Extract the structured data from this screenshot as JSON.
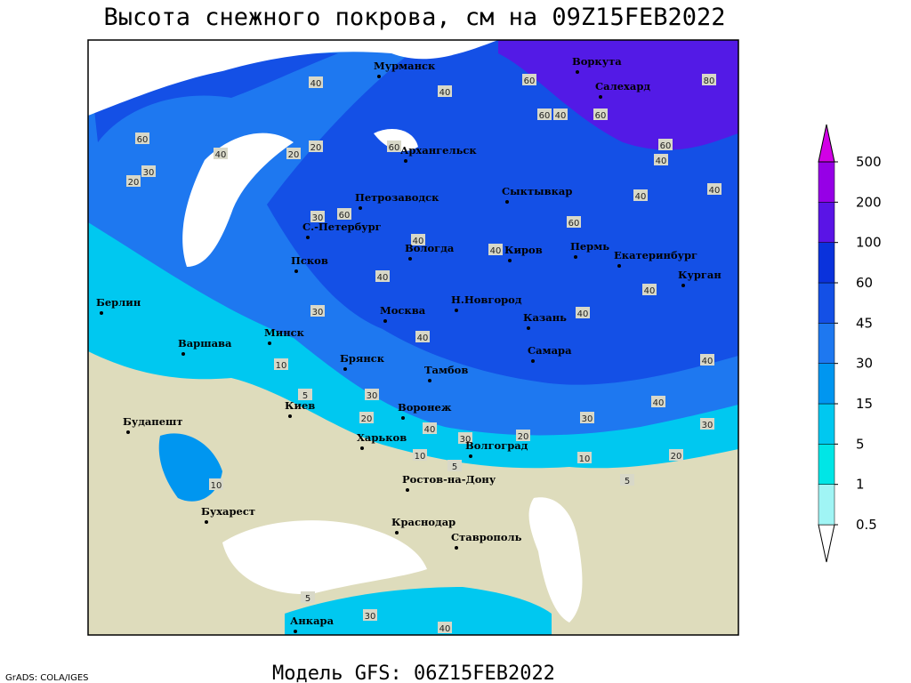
{
  "title": "Высота снежного покрова, см на 09Z15FEB2022",
  "footer": "Модель GFS: 06Z15FEB2022",
  "credit": "GrADS: COLA/IGES",
  "cities": [
    "Мурманск",
    "Воркута",
    "Салехард",
    "Архангельск",
    "Петрозаводск",
    "Сыктывкар",
    "С.-Петербург",
    "Псков",
    "Вологда",
    "Киров",
    "Пермь",
    "Екатеринбург",
    "Курган",
    "Берлин",
    "Варшава",
    "Минск",
    "Москва",
    "Н.Новгород",
    "Казань",
    "Брянск",
    "Тамбов",
    "Самара",
    "Киев",
    "Воронеж",
    "Будапешт",
    "Харьков",
    "Волгоград",
    "Ростов-на-Дону",
    "Бухарест",
    "Краснодар",
    "Ставрополь",
    "Анкара"
  ],
  "contour_labels": [
    40,
    40,
    60,
    30,
    20,
    20,
    20,
    60,
    40,
    60,
    60,
    40,
    60,
    80,
    60,
    40,
    40,
    40,
    60,
    30,
    40,
    40,
    60,
    40,
    30,
    40,
    40,
    40,
    10,
    5,
    30,
    20,
    40,
    30,
    20,
    30,
    40,
    30,
    10,
    20,
    5,
    10,
    40,
    30,
    5,
    40,
    5,
    10
  ],
  "colorbar": {
    "levels": [
      0.5,
      1,
      5,
      15,
      30,
      45,
      60,
      100,
      200,
      500
    ],
    "colors": [
      "#ffffff",
      "#a0f5f5",
      "#00e6e6",
      "#00c8f0",
      "#0096f0",
      "#1e78f0",
      "#1450e6",
      "#0a32dc",
      "#5a14e6",
      "#9600e6",
      "#d200e6"
    ]
  }
}
